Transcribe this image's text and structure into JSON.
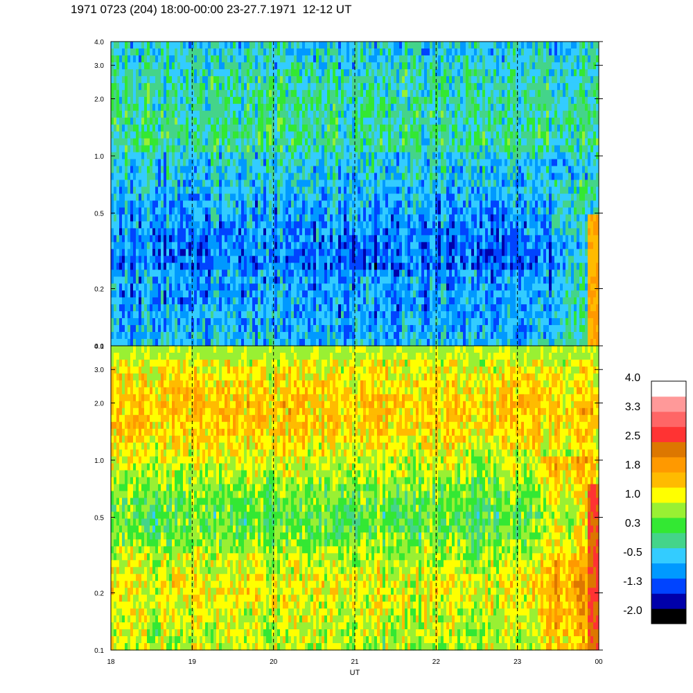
{
  "title": "1971 0723 (204) 18:00-00:00 23-27.7.1971  12-12 UT",
  "chart_data": [
    {
      "type": "heatmap",
      "panel": "top",
      "y_scale": "log",
      "ylim": [
        0.1,
        4.0
      ],
      "y_ticks": [
        "0.1",
        "0.2",
        "0.5",
        "1.0",
        "2.0",
        "3.0",
        "4.0"
      ],
      "y_tick_values": [
        0.1,
        0.2,
        0.5,
        1.0,
        2.0,
        3.0,
        4.0
      ],
      "x_ticks": [
        "18",
        "19",
        "20",
        "21",
        "22",
        "23",
        "00"
      ],
      "xlim": [
        18,
        24
      ],
      "grid": "vertical dashed lines at each hour",
      "dominant_levels": [
        "-0.5 to 0.3 (blue/green/cyan)"
      ],
      "notes": "Values mostly between -1.3 and 0.6; low-frequency enhancement near 23:45-24:00 reaching ~1.8"
    },
    {
      "type": "heatmap",
      "panel": "bottom",
      "y_scale": "log",
      "ylim": [
        0.1,
        4.0
      ],
      "y_ticks": [
        "0.1",
        "0.2",
        "0.5",
        "1.0",
        "2.0",
        "3.0",
        "4.0"
      ],
      "y_tick_values": [
        0.1,
        0.2,
        0.5,
        1.0,
        2.0,
        3.0,
        4.0
      ],
      "x_ticks": [
        "18",
        "19",
        "20",
        "21",
        "22",
        "23",
        "00"
      ],
      "xlim": [
        18,
        24
      ],
      "xlabel": "UT",
      "grid": "vertical dashed lines at each hour",
      "dominant_levels": [
        "0.3 to 1.8 (green/yellow/orange)"
      ],
      "notes": "Band of ~1.4-1.8 between 1.5 and 3.0; enhancement to ~2.5 near 23:50 at low frequencies"
    }
  ],
  "colorbar": {
    "labels": [
      "4.0",
      "3.3",
      "2.5",
      "1.8",
      "1.0",
      "0.3",
      "-0.5",
      "-1.3",
      "-2.0"
    ],
    "min": -2.0,
    "max": 4.0,
    "colors": [
      "#000000",
      "#0000aa",
      "#0044ff",
      "#0099ff",
      "#33ccff",
      "#44d48a",
      "#33e833",
      "#99f033",
      "#ffff00",
      "#ffbb00",
      "#ff9900",
      "#dd7700",
      "#ff3333",
      "#ff6666",
      "#ff9999",
      "#ffffff"
    ]
  }
}
